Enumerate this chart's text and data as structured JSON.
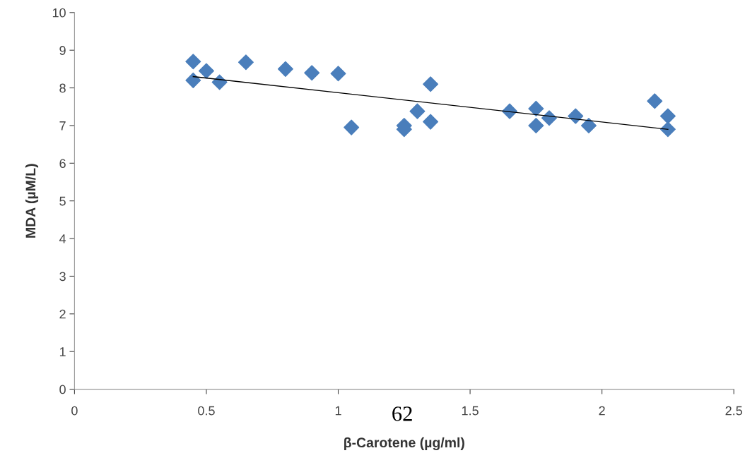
{
  "chart_data": {
    "type": "scatter",
    "xlabel": "β-Carotene (µg/ml)",
    "ylabel": "MDA (µM/L)",
    "xlim": [
      0,
      2.5
    ],
    "xticks": [
      0,
      0.5,
      1,
      1.5,
      2,
      2.5
    ],
    "ylim": [
      0,
      10
    ],
    "yticks": [
      0,
      1,
      2,
      3,
      4,
      5,
      6,
      7,
      8,
      9,
      10
    ],
    "grid": false,
    "annotations": [
      "62"
    ],
    "series": [
      {
        "marker": "diamond",
        "color": "#4a7ebb",
        "x": [
          0.45,
          0.45,
          0.5,
          0.55,
          0.65,
          0.8,
          0.9,
          1.0,
          1.05,
          1.25,
          1.25,
          1.3,
          1.35,
          1.35,
          1.65,
          1.75,
          1.75,
          1.8,
          1.9,
          1.95,
          2.2,
          2.25,
          2.25
        ],
        "values": [
          8.7,
          8.2,
          8.45,
          8.15,
          8.68,
          8.5,
          8.4,
          8.38,
          6.95,
          7.0,
          6.9,
          7.38,
          8.1,
          7.1,
          7.38,
          7.45,
          7.0,
          7.2,
          7.25,
          7.0,
          7.65,
          7.25,
          6.9
        ]
      },
      {
        "type": "line",
        "color": "#000000",
        "x": [
          0.45,
          2.25
        ],
        "values": [
          8.3,
          6.9
        ]
      }
    ]
  }
}
